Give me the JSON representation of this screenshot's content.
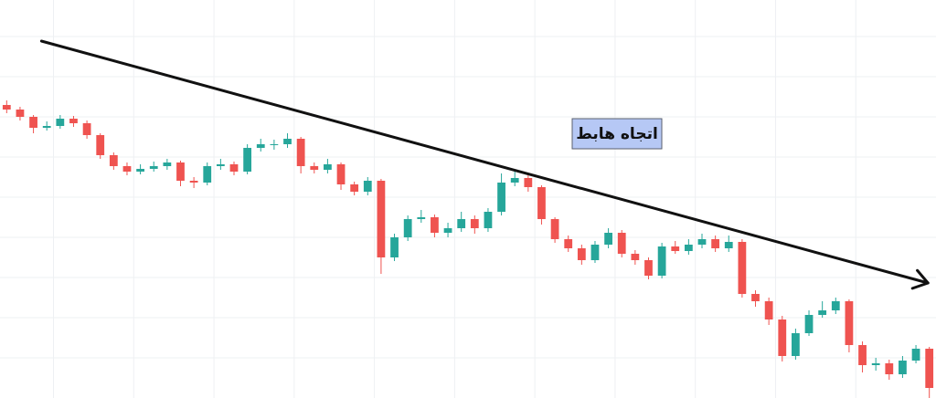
{
  "chart_data": {
    "type": "candlestick",
    "annotation": "اتجاه هابط",
    "up_color": "#26a69a",
    "down_color": "#ef5350",
    "grid": true,
    "xlim": [
      -0.5,
      69.5
    ],
    "ylim": [
      0,
      436
    ],
    "xticks": [
      3.5,
      9.5,
      15.5,
      21.5,
      27.5,
      33.5,
      39.5,
      45.5,
      51.5,
      57.5,
      63.5
    ],
    "yticks": [
      44,
      88,
      132,
      176,
      220,
      264,
      308,
      352,
      396
    ],
    "open": [
      321,
      316,
      308,
      296,
      298,
      306,
      301,
      288,
      266,
      254,
      248,
      251,
      254,
      258,
      238,
      236,
      254,
      256,
      248,
      274,
      278,
      278,
      284,
      254,
      250,
      256,
      234,
      226,
      238,
      154,
      176,
      196,
      198,
      181,
      186,
      196,
      186,
      204,
      236,
      241,
      231,
      196,
      174,
      164,
      151,
      168,
      181,
      158,
      151,
      134,
      166,
      161,
      168,
      174,
      164,
      171,
      114,
      106,
      86,
      46,
      71,
      91,
      96,
      106,
      58,
      36,
      38,
      26,
      41,
      54
    ],
    "high": [
      326,
      319,
      310,
      303,
      310,
      309,
      304,
      290,
      269,
      258,
      256,
      259,
      262,
      260,
      242,
      258,
      262,
      259,
      278,
      284,
      283,
      290,
      286,
      258,
      262,
      258,
      237,
      242,
      240,
      180,
      200,
      206,
      201,
      192,
      204,
      200,
      208,
      246,
      248,
      244,
      233,
      198,
      178,
      168,
      172,
      186,
      184,
      162,
      154,
      170,
      172,
      174,
      180,
      178,
      178,
      174,
      118,
      110,
      90,
      76,
      96,
      106,
      110,
      108,
      62,
      44,
      42,
      46,
      58,
      56
    ],
    "low": [
      312,
      304,
      290,
      293,
      295,
      297,
      284,
      262,
      250,
      244,
      245,
      248,
      250,
      232,
      230,
      233,
      250,
      244,
      245,
      270,
      272,
      274,
      246,
      246,
      246,
      228,
      222,
      222,
      136,
      150,
      172,
      192,
      176,
      176,
      182,
      180,
      182,
      200,
      232,
      226,
      190,
      170,
      160,
      146,
      148,
      164,
      154,
      146,
      130,
      131,
      158,
      157,
      164,
      160,
      160,
      110,
      100,
      80,
      40,
      42,
      68,
      88,
      92,
      50,
      28,
      30,
      20,
      22,
      38,
      0
    ],
    "close": [
      316,
      308,
      296,
      298,
      306,
      301,
      288,
      266,
      254,
      248,
      251,
      254,
      258,
      238,
      236,
      254,
      256,
      248,
      274,
      278,
      278,
      284,
      254,
      250,
      256,
      234,
      226,
      238,
      154,
      176,
      196,
      198,
      181,
      186,
      196,
      186,
      204,
      236,
      241,
      231,
      196,
      174,
      164,
      151,
      168,
      181,
      158,
      151,
      134,
      166,
      161,
      168,
      174,
      164,
      171,
      114,
      106,
      86,
      46,
      71,
      91,
      96,
      106,
      58,
      36,
      38,
      26,
      41,
      54,
      11
    ],
    "trendline": {
      "x": [
        2.6,
        68.9
      ],
      "y": [
        391,
        126
      ]
    }
  }
}
